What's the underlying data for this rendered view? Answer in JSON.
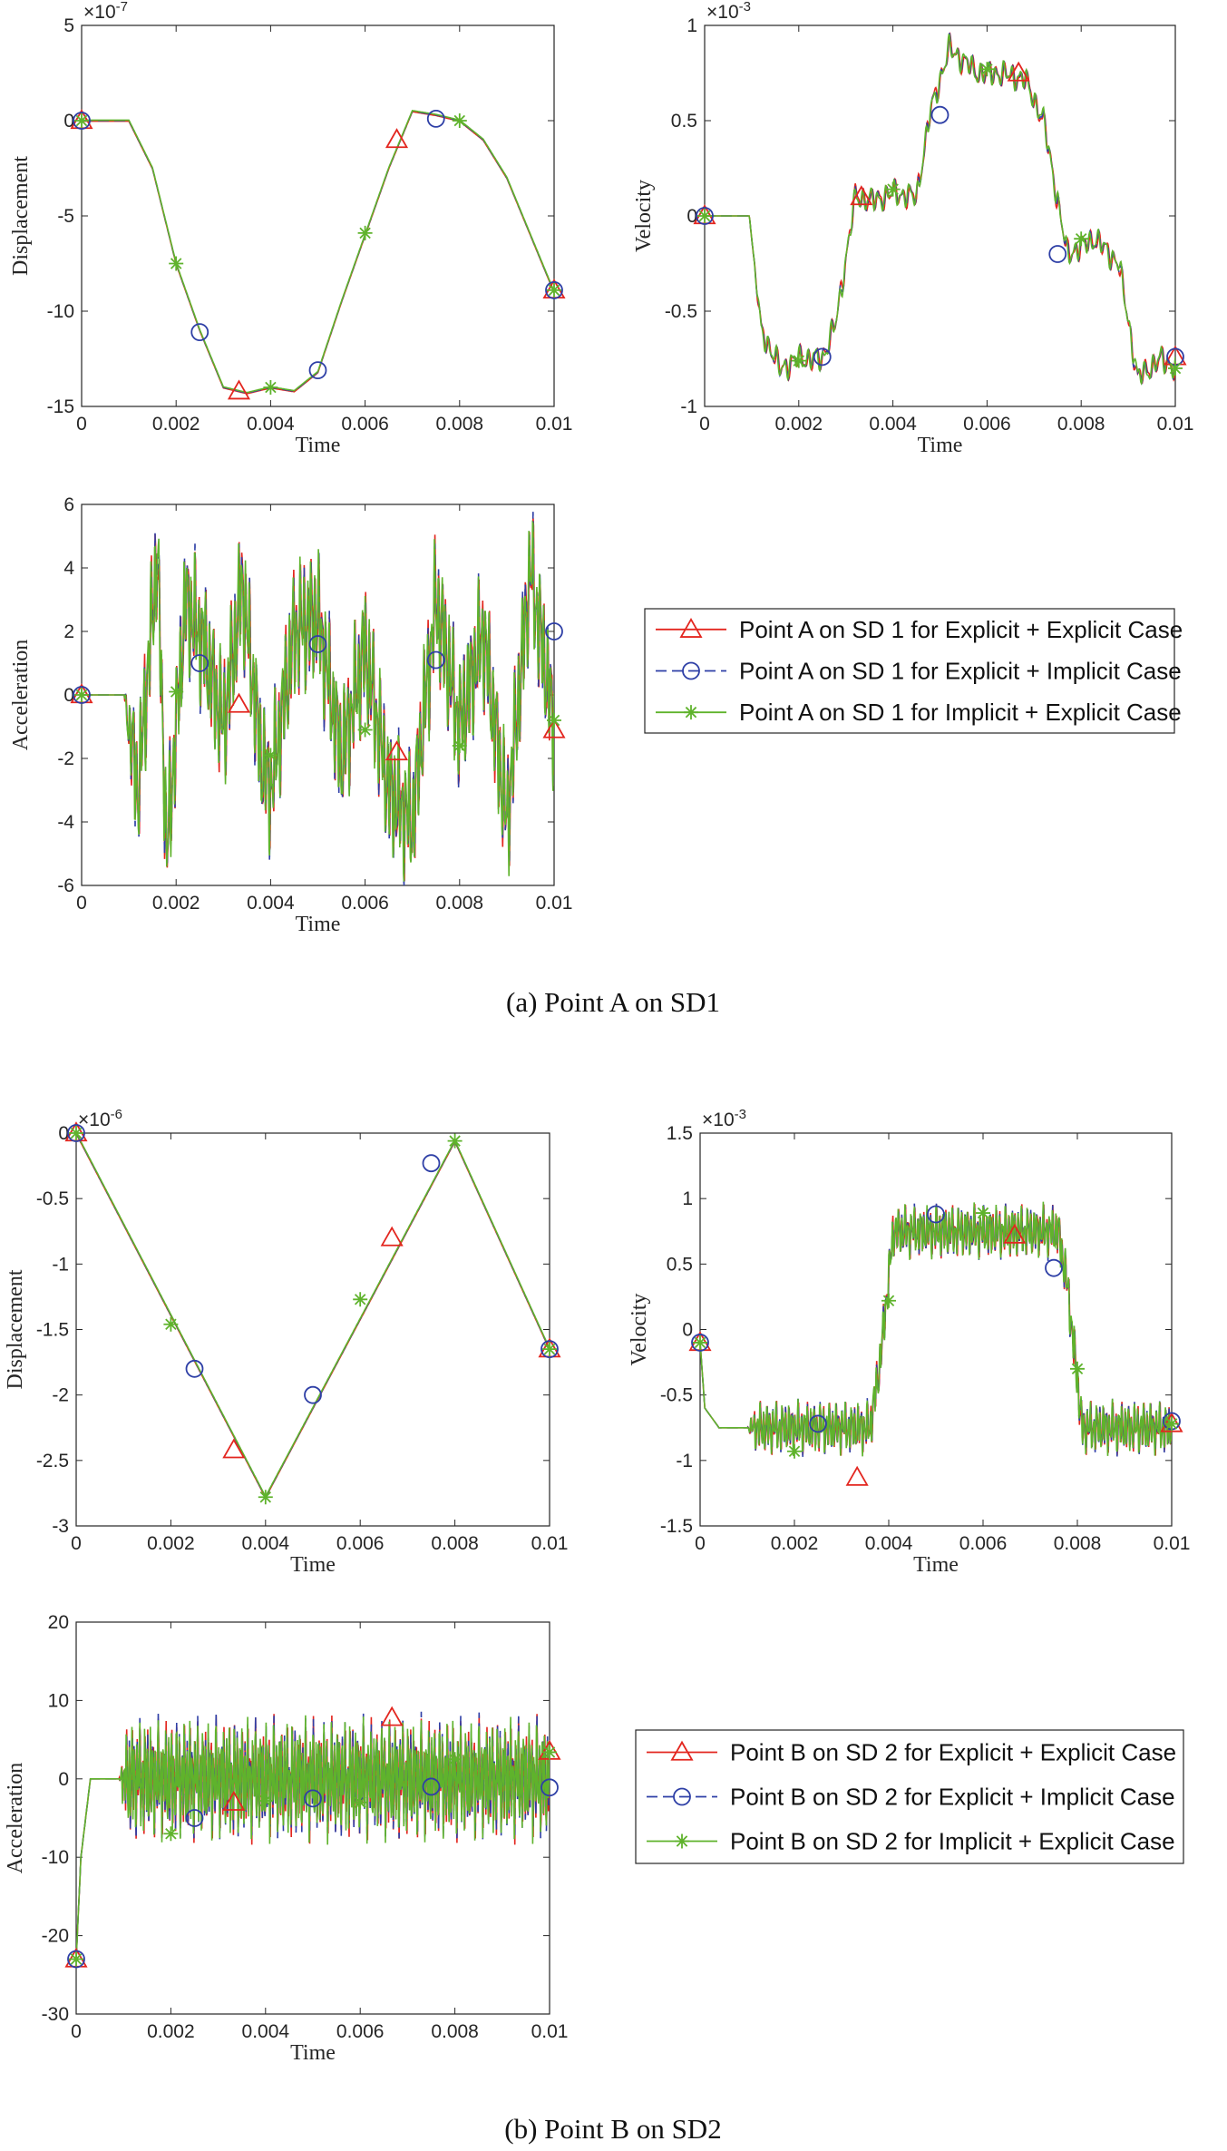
{
  "colors": {
    "explicit_explicit": "#e3261f",
    "explicit_implicit": "#2e3fa6",
    "implicit_explicit": "#5fb32c",
    "axis": "#262626"
  },
  "captions": [
    "(a) Point A on SD1",
    "(b) Point B on SD2"
  ],
  "chart_data": [
    {
      "id": "a_disp",
      "type": "line",
      "xlabel": "Time",
      "ylabel": "Displacement",
      "xlim": [
        0,
        0.01
      ],
      "ylim": [
        -15,
        5
      ],
      "scale": "-7",
      "xticks": [
        "0",
        "0.002",
        "0.004",
        "0.006",
        "0.008",
        "0.01"
      ],
      "yticks": [
        "-15",
        "-10",
        "-5",
        "0",
        "5"
      ],
      "curve": {
        "x": [
          0,
          0.001,
          0.0015,
          0.002,
          0.0025,
          0.003,
          0.0035,
          0.004,
          0.0045,
          0.005,
          0.0055,
          0.006,
          0.0065,
          0.007,
          0.0075,
          0.008,
          0.0085,
          0.009,
          0.0095,
          0.01
        ],
        "y": [
          0,
          0,
          -2.5,
          -7.5,
          -11,
          -14,
          -14.3,
          -14,
          -14.2,
          -13.2,
          -9.5,
          -6,
          -2.5,
          0.5,
          0.3,
          0,
          -1,
          -3,
          -6,
          -9
        ]
      },
      "markers": {
        "explicit_explicit": {
          "x": [
            0,
            0.00333,
            0.00667,
            0.01
          ],
          "y": [
            0,
            -14.2,
            -1,
            -8.9
          ]
        },
        "explicit_implicit": {
          "x": [
            0,
            0.0025,
            0.005,
            0.0075,
            0.01
          ],
          "y": [
            0,
            -11.1,
            -13.1,
            0.1,
            -8.9
          ]
        },
        "implicit_explicit": {
          "x": [
            0,
            0.002,
            0.004,
            0.006,
            0.008,
            0.01
          ],
          "y": [
            0,
            -7.5,
            -14,
            -5.9,
            0,
            -8.9
          ]
        }
      }
    },
    {
      "id": "a_vel",
      "type": "line",
      "xlabel": "Time",
      "ylabel": "Velocity",
      "xlim": [
        0,
        0.01
      ],
      "ylim": [
        -1,
        1
      ],
      "scale": "-3",
      "xticks": [
        "0",
        "0.002",
        "0.004",
        "0.006",
        "0.008",
        "0.01"
      ],
      "yticks": [
        "-1",
        "-0.5",
        "0",
        "0.5",
        "1"
      ],
      "curve": {
        "x": [
          0,
          0.00095,
          0.0012,
          0.0016,
          0.002,
          0.0025,
          0.0028,
          0.0032,
          0.0036,
          0.004,
          0.0045,
          0.0048,
          0.0052,
          0.0058,
          0.0062,
          0.0068,
          0.0072,
          0.0077,
          0.0083,
          0.0088,
          0.0092,
          0.0097,
          0.01
        ],
        "y": [
          0,
          0,
          -0.6,
          -0.8,
          -0.75,
          -0.75,
          -0.55,
          0.1,
          0.08,
          0.12,
          0.1,
          0.55,
          0.88,
          0.75,
          0.75,
          0.72,
          0.5,
          -0.2,
          -0.12,
          -0.25,
          -0.85,
          -0.75,
          -0.8
        ]
      },
      "noise": {
        "amp": 0.07,
        "cycles": 60
      },
      "markers": {
        "explicit_explicit": {
          "x": [
            0,
            0.00333,
            0.00667,
            0.01
          ],
          "y": [
            0,
            0.1,
            0.75,
            -0.74
          ]
        },
        "explicit_implicit": {
          "x": [
            0,
            0.0025,
            0.005,
            0.0075,
            0.01
          ],
          "y": [
            0,
            -0.74,
            0.53,
            -0.2,
            -0.74
          ]
        },
        "implicit_explicit": {
          "x": [
            0,
            0.002,
            0.004,
            0.006,
            0.008,
            0.01
          ],
          "y": [
            0,
            -0.76,
            0.14,
            0.77,
            -0.12,
            -0.8
          ]
        }
      }
    },
    {
      "id": "a_acc",
      "type": "line",
      "xlabel": "Time",
      "ylabel": "Acceleration",
      "xlim": [
        0,
        0.01
      ],
      "ylim": [
        -6,
        6
      ],
      "xticks": [
        "0",
        "0.002",
        "0.004",
        "0.006",
        "0.008",
        "0.01"
      ],
      "yticks": [
        "-6",
        "-4",
        "-2",
        "0",
        "2",
        "4",
        "6"
      ],
      "curve": {
        "x": [
          0,
          0.0009,
          0.0012,
          0.0016,
          0.0018,
          0.0022,
          0.0026,
          0.003,
          0.0034,
          0.0038,
          0.004,
          0.0045,
          0.005,
          0.0055,
          0.006,
          0.0065,
          0.007,
          0.0075,
          0.008,
          0.0085,
          0.009,
          0.0095,
          0.01
        ],
        "y": [
          0,
          0,
          -3,
          4.5,
          -5,
          3,
          1.5,
          -1,
          3.5,
          -2,
          -3,
          2,
          2.5,
          -2,
          1.5,
          -3,
          -4,
          3,
          -1,
          2,
          -4,
          4,
          -1
        ]
      },
      "noise": {
        "amp": 2.2,
        "cycles": 130
      },
      "markers": {
        "explicit_explicit": {
          "x": [
            0,
            0.00333,
            0.00667,
            0.01
          ],
          "y": [
            0,
            -0.3,
            -1.8,
            -1.1
          ]
        },
        "explicit_implicit": {
          "x": [
            0,
            0.0025,
            0.005,
            0.0075,
            0.01
          ],
          "y": [
            0,
            1,
            1.6,
            1.1,
            2
          ]
        },
        "implicit_explicit": {
          "x": [
            0,
            0.002,
            0.004,
            0.006,
            0.008,
            0.01
          ],
          "y": [
            0,
            0.1,
            -1.9,
            -1.1,
            -1.6,
            -0.8
          ]
        }
      }
    },
    {
      "id": "b_disp",
      "type": "line",
      "xlabel": "Time",
      "ylabel": "Displacement",
      "xlim": [
        0,
        0.01
      ],
      "ylim": [
        -3,
        0
      ],
      "scale": "-6",
      "xticks": [
        "0",
        "0.002",
        "0.004",
        "0.006",
        "0.008",
        "0.01"
      ],
      "yticks": [
        "-3",
        "-2.5",
        "-2",
        "-1.5",
        "-1",
        "-0.5",
        "0"
      ],
      "curve": {
        "x": [
          0,
          0.004,
          0.008,
          0.01
        ],
        "y": [
          0,
          -2.78,
          -0.06,
          -1.65
        ]
      },
      "markers": {
        "explicit_explicit": {
          "x": [
            0,
            0.00333,
            0.00667,
            0.01
          ],
          "y": [
            0,
            -2.42,
            -0.8,
            -1.65
          ]
        },
        "explicit_implicit": {
          "x": [
            0,
            0.0025,
            0.005,
            0.0075,
            0.01
          ],
          "y": [
            0,
            -1.8,
            -2,
            -0.23,
            -1.65
          ]
        },
        "implicit_explicit": {
          "x": [
            0,
            0.002,
            0.004,
            0.006,
            0.008,
            0.01
          ],
          "y": [
            0,
            -1.46,
            -2.78,
            -1.27,
            -0.06,
            -1.65
          ]
        }
      }
    },
    {
      "id": "b_vel",
      "type": "line",
      "xlabel": "Time",
      "ylabel": "Velocity",
      "xlim": [
        0,
        0.01
      ],
      "ylim": [
        -1.5,
        1.5
      ],
      "scale": "-3",
      "xticks": [
        "0",
        "0.002",
        "0.004",
        "0.006",
        "0.008",
        "0.01"
      ],
      "yticks": [
        "-1.5",
        "-1",
        "-0.5",
        "0",
        "0.5",
        "1",
        "1.5"
      ],
      "curve": {
        "x": [
          0,
          0.0001,
          0.0004,
          0.0036,
          0.0038,
          0.0041,
          0.0076,
          0.0078,
          0.0081,
          0.01
        ],
        "y": [
          -0.1,
          -0.6,
          -0.75,
          -0.75,
          -0.3,
          0.75,
          0.75,
          0.3,
          -0.75,
          -0.75
        ]
      },
      "noise": {
        "amp": 0.2,
        "cycles": 150
      },
      "markers": {
        "explicit_explicit": {
          "x": [
            0,
            0.00333,
            0.00667,
            0.01
          ],
          "y": [
            -0.1,
            -1.13,
            0.72,
            -0.72
          ]
        },
        "explicit_implicit": {
          "x": [
            0,
            0.0025,
            0.005,
            0.0075,
            0.01
          ],
          "y": [
            -0.1,
            -0.72,
            0.88,
            0.47,
            -0.7
          ]
        },
        "implicit_explicit": {
          "x": [
            0,
            0.002,
            0.004,
            0.006,
            0.008,
            0.01
          ],
          "y": [
            -0.1,
            -0.93,
            0.22,
            0.89,
            -0.3,
            -0.72
          ]
        }
      }
    },
    {
      "id": "b_acc",
      "type": "line",
      "xlabel": "Time",
      "ylabel": "Acceleration",
      "xlim": [
        0,
        0.01
      ],
      "ylim": [
        -30,
        20
      ],
      "xticks": [
        "0",
        "0.002",
        "0.004",
        "0.006",
        "0.008",
        "0.01"
      ],
      "yticks": [
        "-30",
        "-20",
        "-10",
        "0",
        "10",
        "20"
      ],
      "curve": {
        "x": [
          0,
          0.0001,
          0.0003,
          0.01
        ],
        "y": [
          -23,
          -10,
          0,
          0
        ]
      },
      "noise": {
        "amp": 7.5,
        "cycles": 180
      },
      "markers": {
        "explicit_explicit": {
          "x": [
            0,
            0.00333,
            0.00667,
            0.01
          ],
          "y": [
            -23,
            -3,
            7.8,
            3.5
          ]
        },
        "explicit_implicit": {
          "x": [
            0,
            0.0025,
            0.005,
            0.0075,
            0.01
          ],
          "y": [
            -23,
            -5,
            -2.5,
            -1,
            -1.1
          ]
        },
        "implicit_explicit": {
          "x": [
            0,
            0.002,
            0.004,
            0.006,
            0.008,
            0.01
          ],
          "y": [
            -23,
            -7,
            -2.8,
            -3,
            2.5,
            3.4
          ]
        }
      }
    }
  ],
  "legends": [
    {
      "entries": [
        {
          "series": "explicit_explicit",
          "label": "Point A on SD 1 for Explicit + Explicit Case"
        },
        {
          "series": "explicit_implicit",
          "label": "Point A on SD 1 for Explicit + Implicit Case"
        },
        {
          "series": "implicit_explicit",
          "label": "Point A on SD 1 for Implicit + Explicit Case"
        }
      ]
    },
    {
      "entries": [
        {
          "series": "explicit_explicit",
          "label": "Point B on SD 2 for Explicit + Explicit Case"
        },
        {
          "series": "explicit_implicit",
          "label": "Point B on SD 2 for Explicit + Implicit Case"
        },
        {
          "series": "implicit_explicit",
          "label": "Point B on SD 2 for Implicit + Explicit Case"
        }
      ]
    }
  ]
}
